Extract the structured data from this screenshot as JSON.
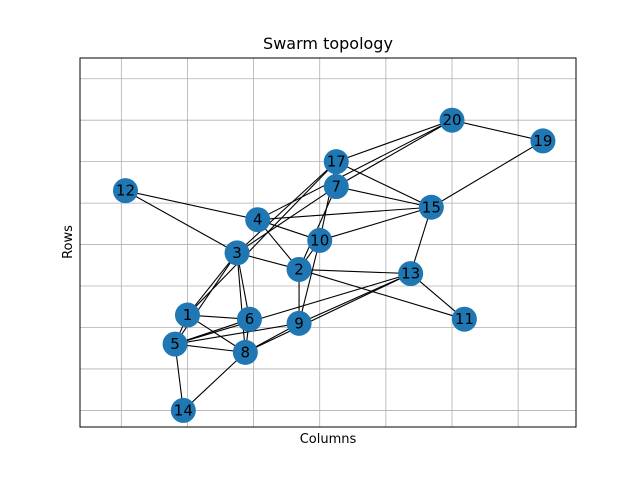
{
  "chart_data": {
    "type": "scatter",
    "title": "Swarm topology",
    "xlabel": "Columns",
    "ylabel": "Rows",
    "grid": true,
    "xlim": [
      -1,
      11
    ],
    "ylim": [
      0.3,
      9.2
    ],
    "grid_x": [
      0,
      1.6,
      3.2,
      4.8,
      6.4,
      8.0,
      9.6
    ],
    "grid_y": [
      0.7,
      1.7,
      2.7,
      3.7,
      4.7,
      5.7,
      6.7,
      7.7,
      8.7
    ],
    "node_color": "#1f77b4",
    "edge_color": "#000000",
    "nodes": [
      {
        "id": "1",
        "x": 1.6,
        "y": 3.0
      },
      {
        "id": "2",
        "x": 4.3,
        "y": 4.1
      },
      {
        "id": "3",
        "x": 2.8,
        "y": 4.5
      },
      {
        "id": "4",
        "x": 3.3,
        "y": 5.3
      },
      {
        "id": "5",
        "x": 1.3,
        "y": 2.3
      },
      {
        "id": "6",
        "x": 3.1,
        "y": 2.9
      },
      {
        "id": "7",
        "x": 5.2,
        "y": 6.1
      },
      {
        "id": "8",
        "x": 3.0,
        "y": 2.1
      },
      {
        "id": "9",
        "x": 4.3,
        "y": 2.8
      },
      {
        "id": "10",
        "x": 4.8,
        "y": 4.8
      },
      {
        "id": "11",
        "x": 8.3,
        "y": 2.9
      },
      {
        "id": "12",
        "x": 0.1,
        "y": 6.0
      },
      {
        "id": "13",
        "x": 7.0,
        "y": 4.0
      },
      {
        "id": "14",
        "x": 1.5,
        "y": 0.7
      },
      {
        "id": "15",
        "x": 7.5,
        "y": 5.6
      },
      {
        "id": "17",
        "x": 5.2,
        "y": 6.7
      },
      {
        "id": "19",
        "x": 10.2,
        "y": 7.2
      },
      {
        "id": "20",
        "x": 8.0,
        "y": 7.7
      }
    ],
    "edges": [
      [
        "1",
        "5"
      ],
      [
        "1",
        "6"
      ],
      [
        "1",
        "8"
      ],
      [
        "1",
        "3"
      ],
      [
        "1",
        "17"
      ],
      [
        "5",
        "6"
      ],
      [
        "5",
        "9"
      ],
      [
        "5",
        "3"
      ],
      [
        "5",
        "13"
      ],
      [
        "5",
        "14"
      ],
      [
        "5",
        "8"
      ],
      [
        "8",
        "14"
      ],
      [
        "8",
        "3"
      ],
      [
        "8",
        "9"
      ],
      [
        "8",
        "13"
      ],
      [
        "8",
        "6"
      ],
      [
        "6",
        "3"
      ],
      [
        "3",
        "12"
      ],
      [
        "3",
        "2"
      ],
      [
        "3",
        "17"
      ],
      [
        "3",
        "7"
      ],
      [
        "4",
        "2"
      ],
      [
        "4",
        "10"
      ],
      [
        "4",
        "15"
      ],
      [
        "4",
        "20"
      ],
      [
        "2",
        "10"
      ],
      [
        "2",
        "13"
      ],
      [
        "2",
        "11"
      ],
      [
        "2",
        "7"
      ],
      [
        "2",
        "9"
      ],
      [
        "9",
        "10"
      ],
      [
        "9",
        "13"
      ],
      [
        "10",
        "17"
      ],
      [
        "10",
        "15"
      ],
      [
        "13",
        "11"
      ],
      [
        "13",
        "15"
      ],
      [
        "7",
        "15"
      ],
      [
        "7",
        "20"
      ],
      [
        "15",
        "17"
      ],
      [
        "15",
        "19"
      ],
      [
        "17",
        "20"
      ],
      [
        "19",
        "20"
      ],
      [
        "12",
        "4"
      ]
    ]
  }
}
